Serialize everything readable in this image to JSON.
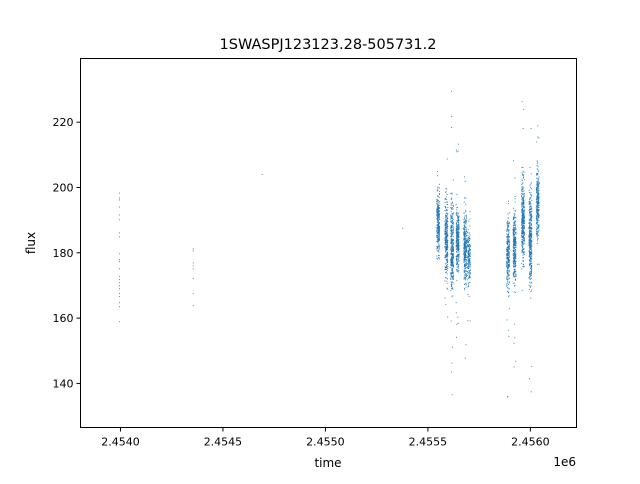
{
  "chart_data": {
    "type": "scatter",
    "title": "1SWASPJ123123.28-505731.2",
    "xlabel": "time",
    "ylabel": "flux",
    "x_offset_label": "1e6",
    "xlim": [
      2453805,
      2456225
    ],
    "ylim": [
      126.5,
      239.5
    ],
    "xticks": [
      2454000,
      2454500,
      2455000,
      2455500,
      2456000
    ],
    "xtick_labels": [
      "2.4540",
      "2.4545",
      "2.4550",
      "2.4555",
      "2.4560"
    ],
    "yticks": [
      140,
      160,
      180,
      200,
      220
    ],
    "ytick_labels": [
      "140",
      "160",
      "180",
      "200",
      "220"
    ],
    "grid": false,
    "marker_color": "#1f77b4",
    "points": [
      {
        "x": 2453995,
        "y": 198.3
      },
      {
        "x": 2453995,
        "y": 196.8
      },
      {
        "x": 2453995,
        "y": 196.2
      },
      {
        "x": 2453995,
        "y": 194.0
      },
      {
        "x": 2453995,
        "y": 191.6
      },
      {
        "x": 2453995,
        "y": 190.1
      },
      {
        "x": 2453995,
        "y": 186.1
      },
      {
        "x": 2453995,
        "y": 184.9
      },
      {
        "x": 2453995,
        "y": 179.7
      },
      {
        "x": 2453995,
        "y": 177.9
      },
      {
        "x": 2453995,
        "y": 177.3
      },
      {
        "x": 2453995,
        "y": 175.1
      },
      {
        "x": 2453995,
        "y": 172.7
      },
      {
        "x": 2453995,
        "y": 171.8
      },
      {
        "x": 2453995,
        "y": 170.8
      },
      {
        "x": 2453995,
        "y": 169.9
      },
      {
        "x": 2453995,
        "y": 169.0
      },
      {
        "x": 2453995,
        "y": 167.5
      },
      {
        "x": 2453995,
        "y": 166.6
      },
      {
        "x": 2453995,
        "y": 164.7
      },
      {
        "x": 2453995,
        "y": 163.5
      },
      {
        "x": 2453995,
        "y": 158.9
      },
      {
        "x": 2454355,
        "y": 181.2
      },
      {
        "x": 2454355,
        "y": 180.6
      },
      {
        "x": 2454355,
        "y": 176.9
      },
      {
        "x": 2454355,
        "y": 176.0
      },
      {
        "x": 2454355,
        "y": 175.1
      },
      {
        "x": 2454355,
        "y": 172.1
      },
      {
        "x": 2454355,
        "y": 167.5
      },
      {
        "x": 2454355,
        "y": 163.8
      },
      {
        "x": 2454691,
        "y": 204.0
      },
      {
        "x": 2455377,
        "y": 187.5
      }
    ],
    "dense_columns": [
      {
        "x": 2455550,
        "center": 189,
        "spread": 8,
        "count": 260,
        "outlier_range": [
          178,
          205
        ]
      },
      {
        "x": 2455590,
        "center": 184,
        "spread": 10,
        "count": 300,
        "outlier_range": [
          160,
          222
        ]
      },
      {
        "x": 2455618,
        "center": 182,
        "spread": 11,
        "count": 320,
        "outlier_range": [
          133,
          232
        ]
      },
      {
        "x": 2455645,
        "center": 184,
        "spread": 8,
        "count": 300,
        "outlier_range": [
          150,
          215
        ]
      },
      {
        "x": 2455682,
        "center": 182,
        "spread": 9,
        "count": 280,
        "outlier_range": [
          135,
          219
        ]
      },
      {
        "x": 2455700,
        "center": 178,
        "spread": 7,
        "count": 160,
        "outlier_range": [
          158,
          195
        ]
      },
      {
        "x": 2455891,
        "center": 180,
        "spread": 9,
        "count": 260,
        "outlier_range": [
          132,
          215
        ]
      },
      {
        "x": 2455923,
        "center": 182,
        "spread": 9,
        "count": 300,
        "outlier_range": [
          140,
          215
        ]
      },
      {
        "x": 2455964,
        "center": 190,
        "spread": 11,
        "count": 340,
        "outlier_range": [
          145,
          234
        ]
      },
      {
        "x": 2456000,
        "center": 185,
        "spread": 12,
        "count": 360,
        "outlier_range": [
          133,
          234
        ]
      },
      {
        "x": 2456036,
        "center": 195,
        "spread": 9,
        "count": 260,
        "outlier_range": [
          170,
          220
        ]
      }
    ]
  }
}
